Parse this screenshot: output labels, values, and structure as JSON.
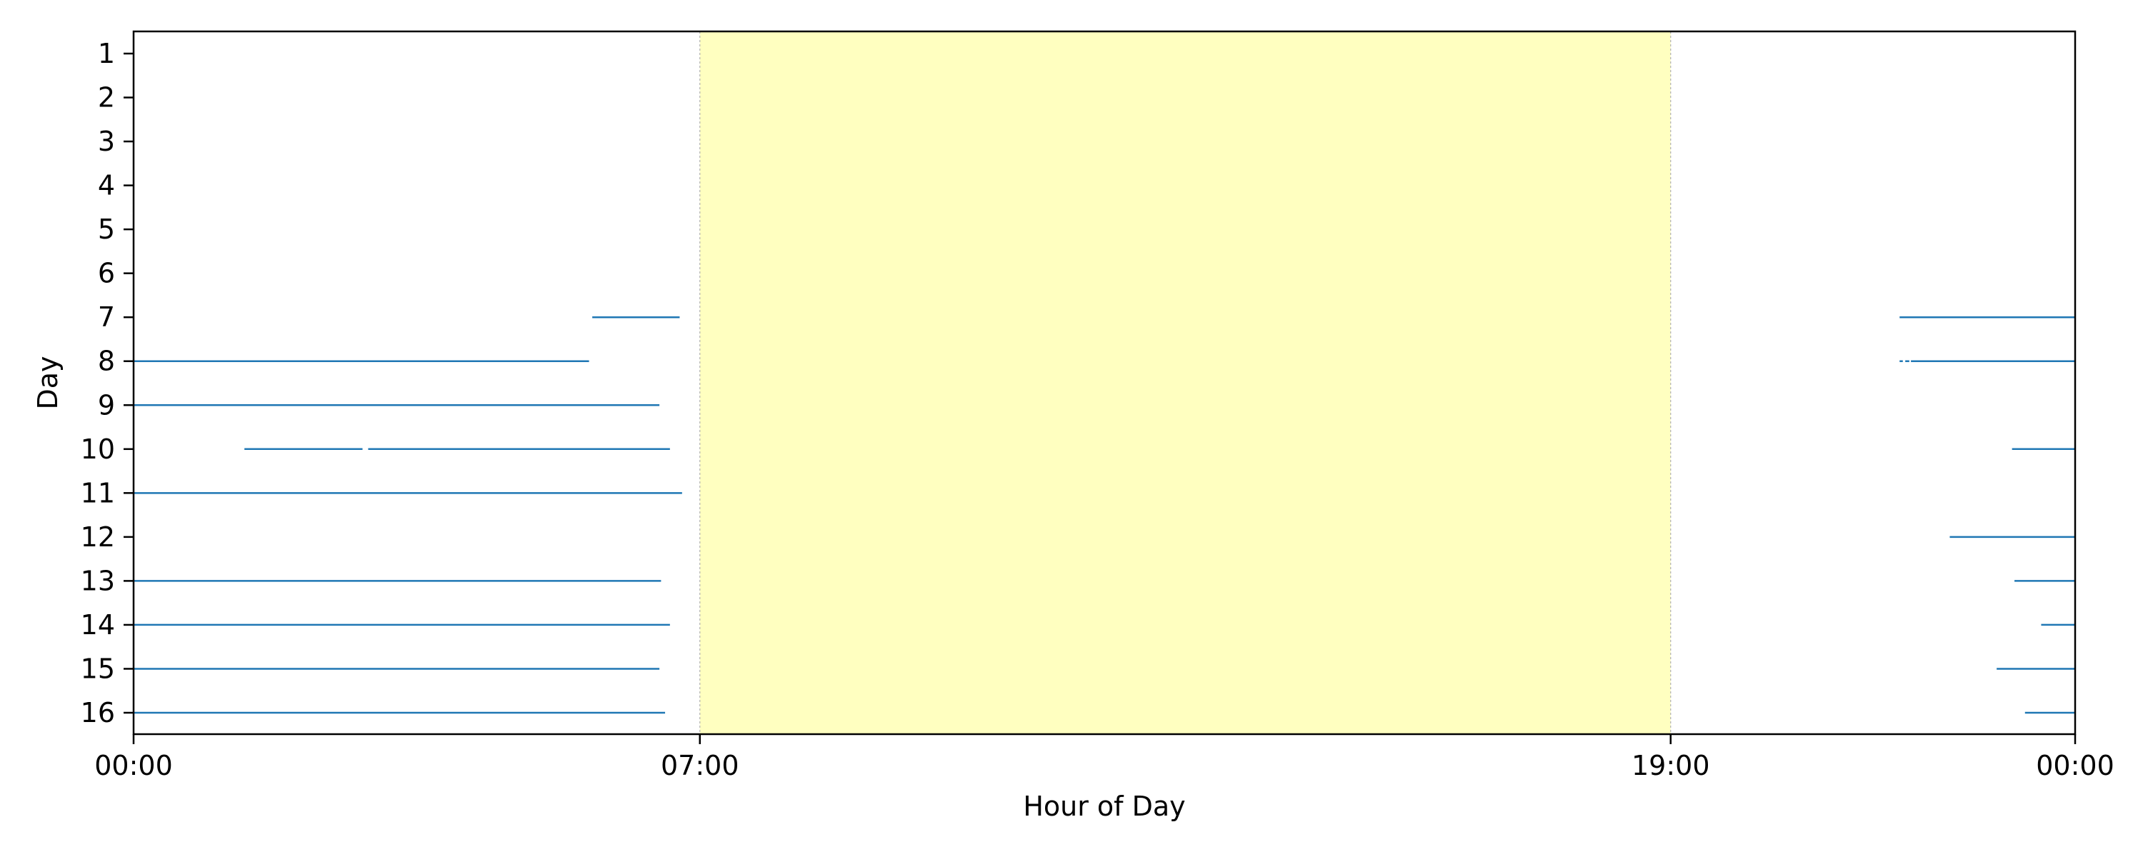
{
  "chart_data": {
    "type": "timeline",
    "title": "",
    "xlabel": "Hour of Day",
    "ylabel": "Day",
    "x_range_hours": [
      0,
      24
    ],
    "x_ticks": [
      {
        "hour": 0,
        "label": "00:00"
      },
      {
        "hour": 7,
        "label": "07:00"
      },
      {
        "hour": 19,
        "label": "19:00"
      },
      {
        "hour": 24,
        "label": "00:00"
      }
    ],
    "y_ticks": [
      "1",
      "2",
      "3",
      "4",
      "5",
      "6",
      "7",
      "8",
      "9",
      "10",
      "11",
      "12",
      "13",
      "14",
      "15",
      "16"
    ],
    "daytime_band": {
      "start_hour": 7,
      "end_hour": 19,
      "color": "#ffffc0"
    },
    "series_color": "#1f77b4",
    "segments": [
      {
        "day": 7,
        "start": 5.67,
        "end": 6.75
      },
      {
        "day": 7,
        "start": 21.83,
        "end": 24.0
      },
      {
        "day": 8,
        "start": 0.0,
        "end": 5.63
      },
      {
        "day": 8,
        "start": 21.83,
        "end": 21.87
      },
      {
        "day": 8,
        "start": 21.9,
        "end": 21.95
      },
      {
        "day": 8,
        "start": 21.97,
        "end": 24.0
      },
      {
        "day": 9,
        "start": 0.0,
        "end": 6.5
      },
      {
        "day": 10,
        "start": 1.37,
        "end": 2.83
      },
      {
        "day": 10,
        "start": 2.9,
        "end": 6.63
      },
      {
        "day": 10,
        "start": 23.22,
        "end": 24.0
      },
      {
        "day": 11,
        "start": 0.0,
        "end": 6.78
      },
      {
        "day": 12,
        "start": 22.45,
        "end": 24.0
      },
      {
        "day": 13,
        "start": 0.0,
        "end": 6.52
      },
      {
        "day": 13,
        "start": 23.25,
        "end": 24.0
      },
      {
        "day": 14,
        "start": 0.0,
        "end": 6.63
      },
      {
        "day": 14,
        "start": 23.58,
        "end": 24.0
      },
      {
        "day": 15,
        "start": 0.0,
        "end": 6.5
      },
      {
        "day": 15,
        "start": 23.03,
        "end": 24.0
      },
      {
        "day": 16,
        "start": 0.0,
        "end": 6.57
      },
      {
        "day": 16,
        "start": 23.38,
        "end": 24.0
      }
    ]
  }
}
